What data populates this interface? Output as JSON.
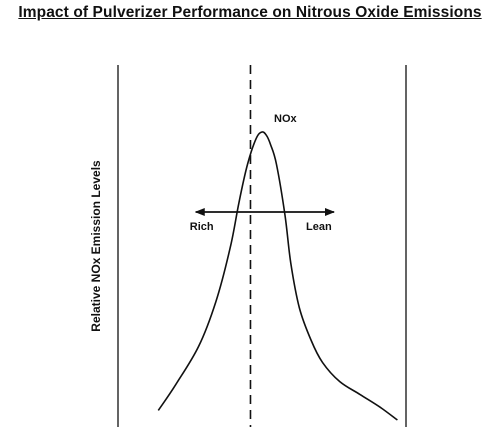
{
  "chart_data": {
    "type": "line",
    "title": "Impact of Pulverizer Performance on Nitrous Oxide Emissions",
    "xlabel": "",
    "ylabel": "Relative NOx Emission Levels",
    "grid": false,
    "x_ticks": false,
    "y_ticks": false,
    "xlim": [
      0,
      100
    ],
    "ylim": [
      0,
      100
    ],
    "series": [
      {
        "name": "NOx",
        "x": [
          14,
          20,
          28,
          34,
          39,
          42,
          45,
          48,
          50,
          51.5,
          53,
          55,
          58,
          60,
          63,
          67,
          71,
          77,
          84,
          91,
          97
        ],
        "y": [
          3,
          11,
          23,
          37,
          54,
          68,
          80,
          88,
          90,
          89,
          86,
          80,
          64,
          49,
          35,
          25,
          18,
          12,
          8,
          4,
          0
        ]
      }
    ],
    "annotations": {
      "center_line_x": 46,
      "arrow_y": 65,
      "arrow_left_x": 27,
      "arrow_right_x": 75,
      "rich_label": "Rich",
      "lean_label": "Lean",
      "series_label": "NOx"
    }
  }
}
